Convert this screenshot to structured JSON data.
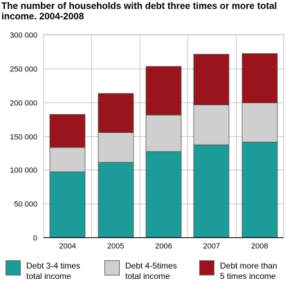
{
  "title": "The number of households with debt three times or more total income. 2004-2008",
  "chart_data": {
    "type": "bar",
    "stacked": true,
    "title": "The number of households with debt three times or more total income. 2004-2008",
    "xlabel": "",
    "ylabel": "",
    "categories": [
      "2004",
      "2005",
      "2006",
      "2007",
      "2008"
    ],
    "ylim": [
      0,
      300000
    ],
    "yticks": [
      0,
      50000,
      100000,
      150000,
      200000,
      250000,
      300000
    ],
    "ytick_labels": [
      "0",
      "50 000",
      "100 000",
      "150 000",
      "200 000",
      "250 000",
      "300 000"
    ],
    "grid": true,
    "legend_position": "bottom",
    "series": [
      {
        "name": "Debt 3-4 times total income",
        "label_lines": [
          "Debt 3-4 times",
          "total income"
        ],
        "color": "#1d9b98",
        "values": [
          97000,
          111000,
          127000,
          137000,
          141000
        ]
      },
      {
        "name": "Debt 4-5times total income",
        "label_lines": [
          "Debt 4-5times",
          "total income"
        ],
        "color": "#cfcfcf",
        "values": [
          36000,
          44000,
          54000,
          59000,
          58000
        ]
      },
      {
        "name": "Debt more than 5 times income",
        "label_lines": [
          "Debt more than",
          "5 times income"
        ],
        "color": "#99141c",
        "values": [
          49000,
          58000,
          72000,
          75000,
          73000
        ]
      }
    ]
  }
}
